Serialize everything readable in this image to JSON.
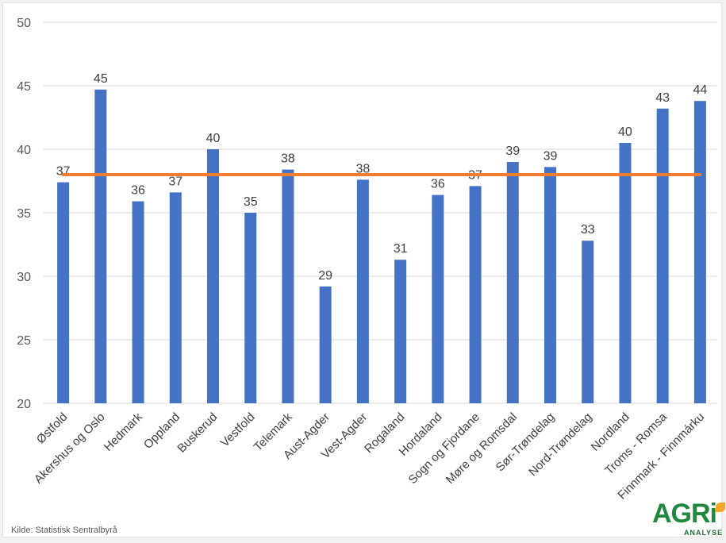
{
  "chart_data": {
    "type": "bar",
    "categories": [
      "Østfold",
      "Akershus og Oslo",
      "Hedmark",
      "Oppland",
      "Buskerud",
      "Vestfold",
      "Telemark",
      "Aust-Agder",
      "Vest-Agder",
      "Rogaland",
      "Hordaland",
      "Sogn og Fjordane",
      "Møre og Romsdal",
      "Sør-Trøndelag",
      "Nord-Trøndelag",
      "Nordland",
      "Troms - Romsa",
      "Finnmark - Finnmárku"
    ],
    "values": [
      37.4,
      44.7,
      35.9,
      36.6,
      40.0,
      35.0,
      38.4,
      29.2,
      37.6,
      31.3,
      36.4,
      37.1,
      39.0,
      38.6,
      32.8,
      40.5,
      43.2,
      43.8
    ],
    "data_labels": [
      "37",
      "45",
      "36",
      "37",
      "40",
      "35",
      "38",
      "29",
      "38",
      "31",
      "36",
      "37",
      "39",
      "39",
      "33",
      "40",
      "43",
      "44"
    ],
    "reference_line": 38,
    "ylim": [
      20,
      50
    ],
    "yticks": [
      "20",
      "25",
      "30",
      "35",
      "40",
      "45",
      "50"
    ],
    "grid": true,
    "bar_color": "#4472c4",
    "line_color": "#ed7d31"
  },
  "source": "Kilde: Statistisk Sentralbyrå",
  "logo": {
    "main": "AGRi",
    "sub": "ANALYSE"
  }
}
